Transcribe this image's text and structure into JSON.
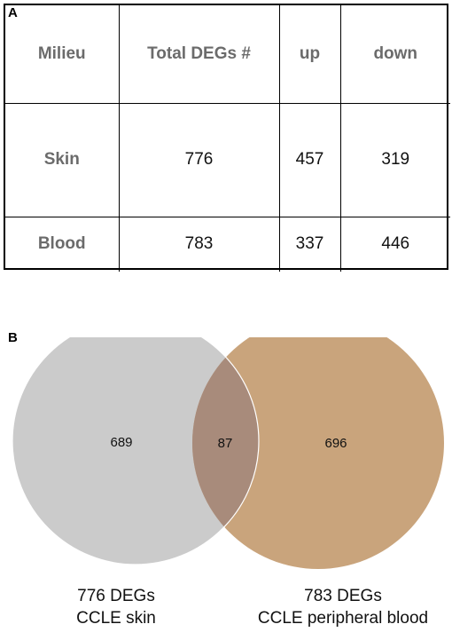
{
  "panel_a": {
    "label": "A",
    "columns": [
      "Milieu",
      "Total DEGs #",
      "up",
      "down"
    ],
    "rows": [
      {
        "milieu": "Skin",
        "total": "776",
        "up": "457",
        "down": "319"
      },
      {
        "milieu": "Blood",
        "total": "783",
        "up": "337",
        "down": "446"
      }
    ]
  },
  "panel_b": {
    "label": "B",
    "left_only": "689",
    "overlap": "87",
    "right_only": "696",
    "left_caption_line1": "776 DEGs",
    "left_caption_line2": "CCLE skin",
    "right_caption_line1": "783 DEGs",
    "right_caption_line2": "CCLE peripheral blood",
    "colors": {
      "left_circle": "#cbcbcb",
      "right_circle": "#c9a47c",
      "overlap": "#a88b7b"
    }
  }
}
